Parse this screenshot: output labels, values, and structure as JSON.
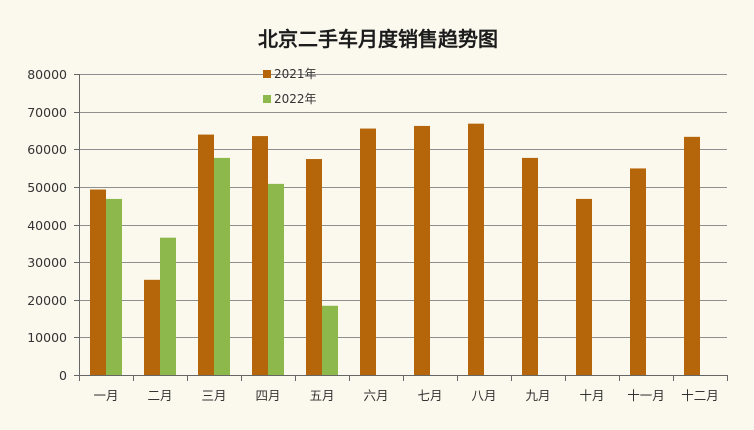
{
  "chart_data": {
    "type": "bar",
    "title": "北京二手车月度销售趋势图",
    "xlabel": "",
    "ylabel": "",
    "categories": [
      "一月",
      "二月",
      "三月",
      "四月",
      "五月",
      "六月",
      "七月",
      "八月",
      "九月",
      "十月",
      "十一月",
      "十二月"
    ],
    "series": [
      {
        "name": "2021年",
        "color": "#B5650A",
        "values": [
          49300,
          25300,
          63900,
          63500,
          57400,
          65500,
          66200,
          66800,
          57700,
          46800,
          54900,
          63300
        ]
      },
      {
        "name": "2022年",
        "color": "#8DB84B",
        "values": [
          46800,
          36500,
          57700,
          50800,
          18400,
          null,
          null,
          null,
          null,
          null,
          null,
          null
        ]
      }
    ],
    "ylim": [
      0,
      80000
    ],
    "yticks": [
      0,
      10000,
      20000,
      30000,
      40000,
      50000,
      60000,
      70000,
      80000
    ],
    "grid": true,
    "legend_position": "top-left"
  }
}
